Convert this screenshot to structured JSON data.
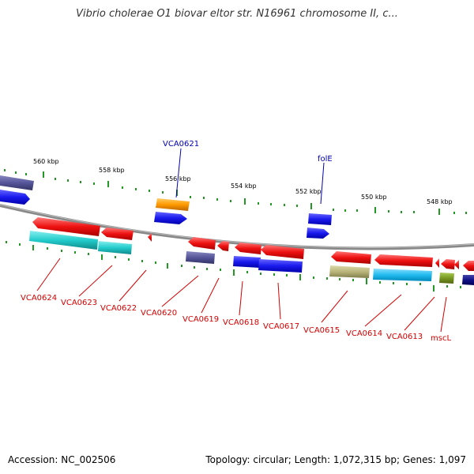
{
  "title": "Vibrio cholerae O1 biovar eltor str. N16961 chromosome II, c...",
  "footer": {
    "accession": "Accession: NC_002506",
    "summary": "Topology: circular; Length: 1,072,315 bp; Genes: 1,097"
  },
  "colors": {
    "backbone": "#888888",
    "red": "#ee1111",
    "blue": "#1a1aee",
    "cyan": "#22cccc",
    "purple": "#55559a",
    "orange": "#ff9900",
    "khaki": "#b8b47a",
    "sky": "#22bbee",
    "olive": "#779922",
    "navy": "#111188",
    "tick": "#229922"
  },
  "kbp_labels": [
    "560 kbp",
    "558 kbp",
    "556 kbp",
    "554 kbp",
    "552 kbp",
    "550 kbp",
    "548 kbp"
  ],
  "genes_bottom": [
    {
      "name": "VCA0624"
    },
    {
      "name": "VCA0623"
    },
    {
      "name": "VCA0622"
    },
    {
      "name": "VCA0620"
    },
    {
      "name": "VCA0619"
    },
    {
      "name": "VCA0618"
    },
    {
      "name": "VCA0617"
    },
    {
      "name": "VCA0615"
    },
    {
      "name": "VCA0614"
    },
    {
      "name": "VCA0613"
    },
    {
      "name": "mscL"
    }
  ],
  "genes_top": [
    {
      "name": "VCA0621"
    },
    {
      "name": "folE"
    }
  ]
}
